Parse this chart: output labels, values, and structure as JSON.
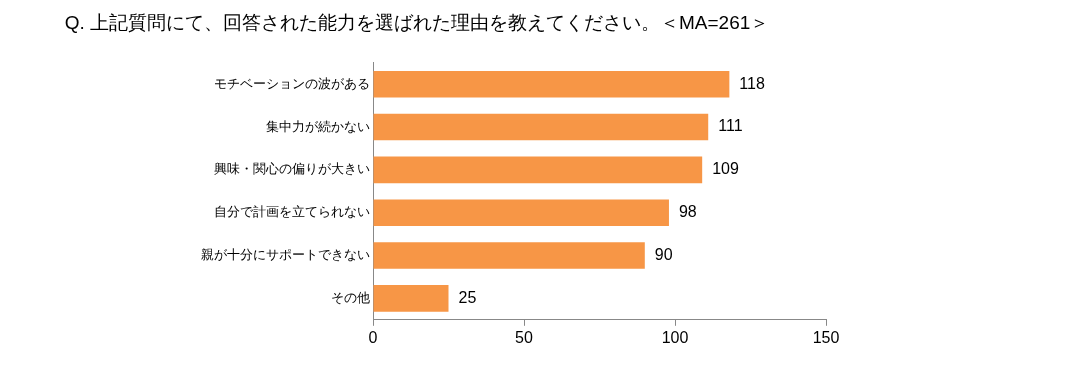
{
  "chart_data": {
    "type": "bar",
    "orientation": "horizontal",
    "title": "Q. 上記質問にて、回答された能力を選ばれた理由を教えてください。＜MA=261＞",
    "categories": [
      "モチベーションの波がある",
      "集中力が続かない",
      "興味・関心の偏りが大きい",
      "自分で計画を立てられない",
      "親が十分にサポートできない",
      "その他"
    ],
    "values": [
      118,
      111,
      109,
      98,
      90,
      25
    ],
    "color": "#f79646",
    "xlim": [
      0,
      150
    ],
    "xticks": [
      0,
      50,
      100,
      150
    ],
    "data_labels": true,
    "grid": false,
    "legend": false
  }
}
